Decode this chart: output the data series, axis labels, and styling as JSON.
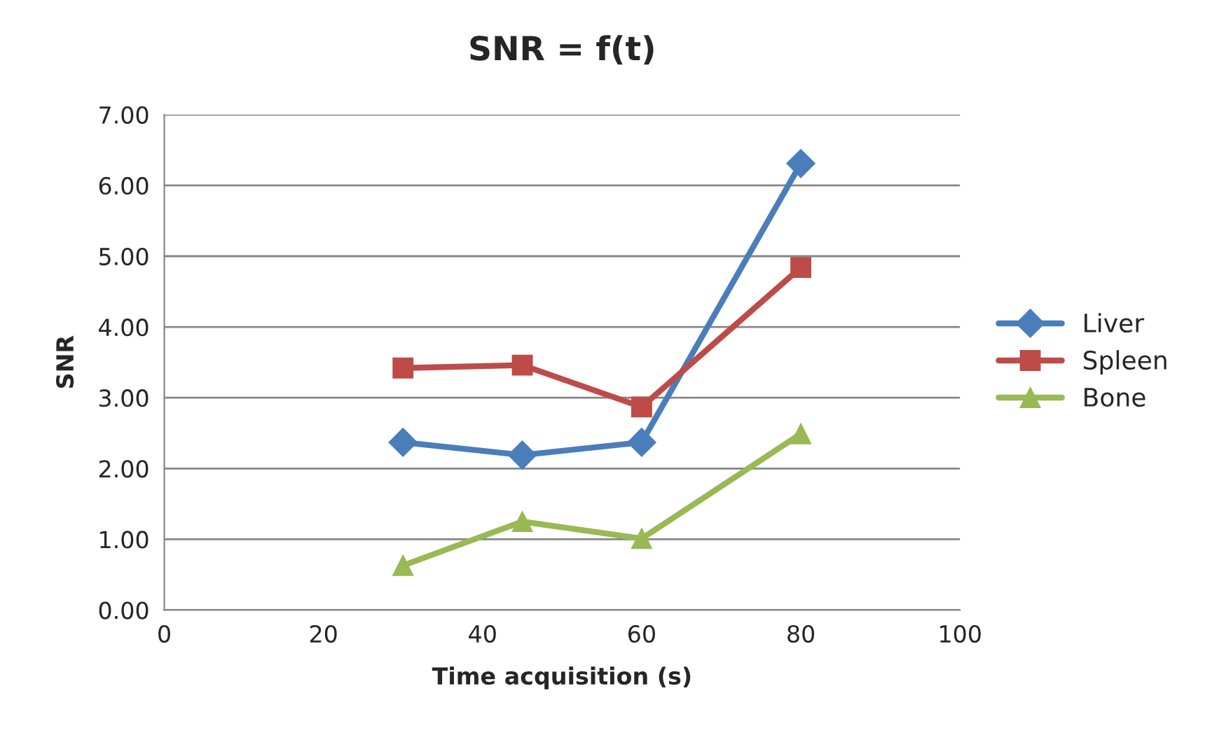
{
  "chart_data": {
    "type": "line",
    "title": "SNR = f(t)",
    "xlabel": "Time acquisition (s)",
    "ylabel": "SNR",
    "x": [
      30,
      45,
      60,
      80
    ],
    "series": [
      {
        "name": "Liver",
        "color": "#4a7ebb",
        "marker": "diamond",
        "values": [
          2.37,
          2.19,
          2.37,
          6.31
        ]
      },
      {
        "name": "Spleen",
        "color": "#be4b48",
        "marker": "square",
        "values": [
          3.42,
          3.46,
          2.87,
          4.84
        ]
      },
      {
        "name": "Bone",
        "color": "#98b954",
        "marker": "triangle",
        "values": [
          0.63,
          1.25,
          1.01,
          2.49
        ]
      }
    ],
    "xlim": [
      0,
      100
    ],
    "xticks": [
      0,
      20,
      40,
      60,
      80,
      100
    ],
    "ylim": [
      0,
      7
    ],
    "yticks": [
      {
        "value": 0,
        "label": "0.00"
      },
      {
        "value": 1,
        "label": "1.00"
      },
      {
        "value": 2,
        "label": "2.00"
      },
      {
        "value": 3,
        "label": "3.00"
      },
      {
        "value": 4,
        "label": "4.00"
      },
      {
        "value": 5,
        "label": "5.00"
      },
      {
        "value": 6,
        "label": "6.00"
      },
      {
        "value": 7,
        "label": "7.00"
      }
    ],
    "grid": "y",
    "legend": "right",
    "line_style": "solid"
  }
}
